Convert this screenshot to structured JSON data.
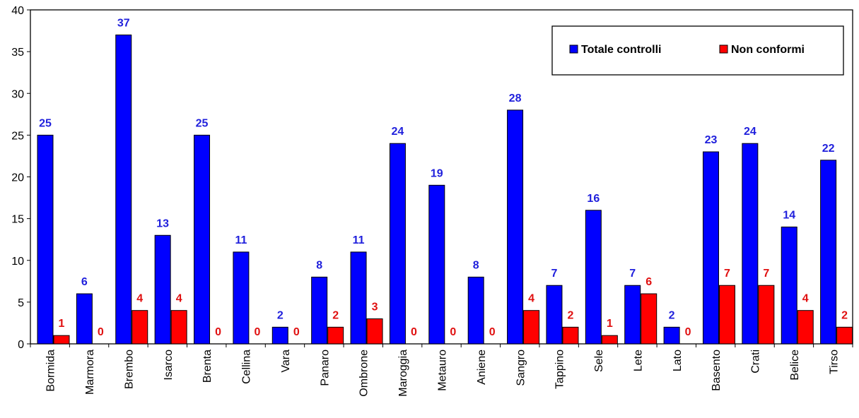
{
  "chart_data": {
    "type": "bar",
    "categories": [
      "Bormida",
      "Marmora",
      "Brembo",
      "Isarco",
      "Brenta",
      "Cellina",
      "Vara",
      "Panaro",
      "Ombrone",
      "Maroggia",
      "Metauro",
      "Aniene",
      "Sangro",
      "Tappino",
      "Sele",
      "Lete",
      "Lato",
      "Basento",
      "Crati",
      "Belice",
      "Tirso"
    ],
    "series": [
      {
        "name": "Totale controlli",
        "color": "#0000ff",
        "label_color": "#1f1fdc",
        "values": [
          25,
          6,
          37,
          13,
          25,
          11,
          2,
          8,
          11,
          24,
          19,
          8,
          28,
          7,
          16,
          7,
          2,
          23,
          24,
          14,
          22
        ]
      },
      {
        "name": "Non conformi",
        "color": "#ff0000",
        "label_color": "#e01010",
        "values": [
          1,
          0,
          4,
          4,
          0,
          0,
          0,
          2,
          3,
          0,
          0,
          0,
          4,
          2,
          1,
          6,
          0,
          7,
          7,
          4,
          2
        ]
      }
    ],
    "ylim": [
      0,
      40
    ],
    "yticks": [
      0,
      5,
      10,
      15,
      20,
      25,
      30,
      35,
      40
    ],
    "grid": false,
    "legend_position": "top-right",
    "title": "",
    "xlabel": "",
    "ylabel": ""
  }
}
